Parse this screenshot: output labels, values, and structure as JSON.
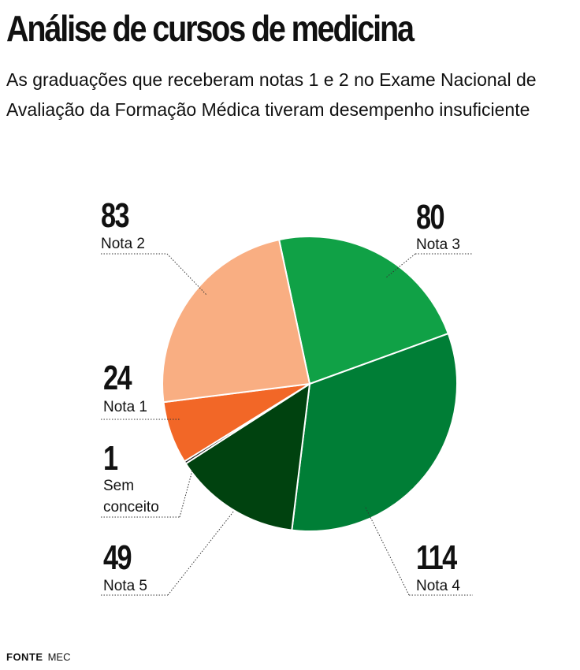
{
  "title": "Análise de cursos de medicina",
  "subtitle": "As graduações que receberam notas 1 e 2 no Exame Nacional de Avaliação da Formação Médica tiveram desempenho insuficiente",
  "source": {
    "label": "FONTE",
    "value": "MEC"
  },
  "chart_data": {
    "type": "pie",
    "slices": [
      {
        "label": "Nota 3",
        "value": 80,
        "color": "#10a146"
      },
      {
        "label": "Nota 4",
        "value": 114,
        "color": "#007e36"
      },
      {
        "label": "Nota 5",
        "value": 49,
        "color": "#00420f"
      },
      {
        "label": "Sem conceito",
        "value": 1,
        "color": "#111111"
      },
      {
        "label": "Nota 1",
        "value": 24,
        "color": "#f26727"
      },
      {
        "label": "Nota 2",
        "value": 83,
        "color": "#f9ae82"
      }
    ]
  }
}
